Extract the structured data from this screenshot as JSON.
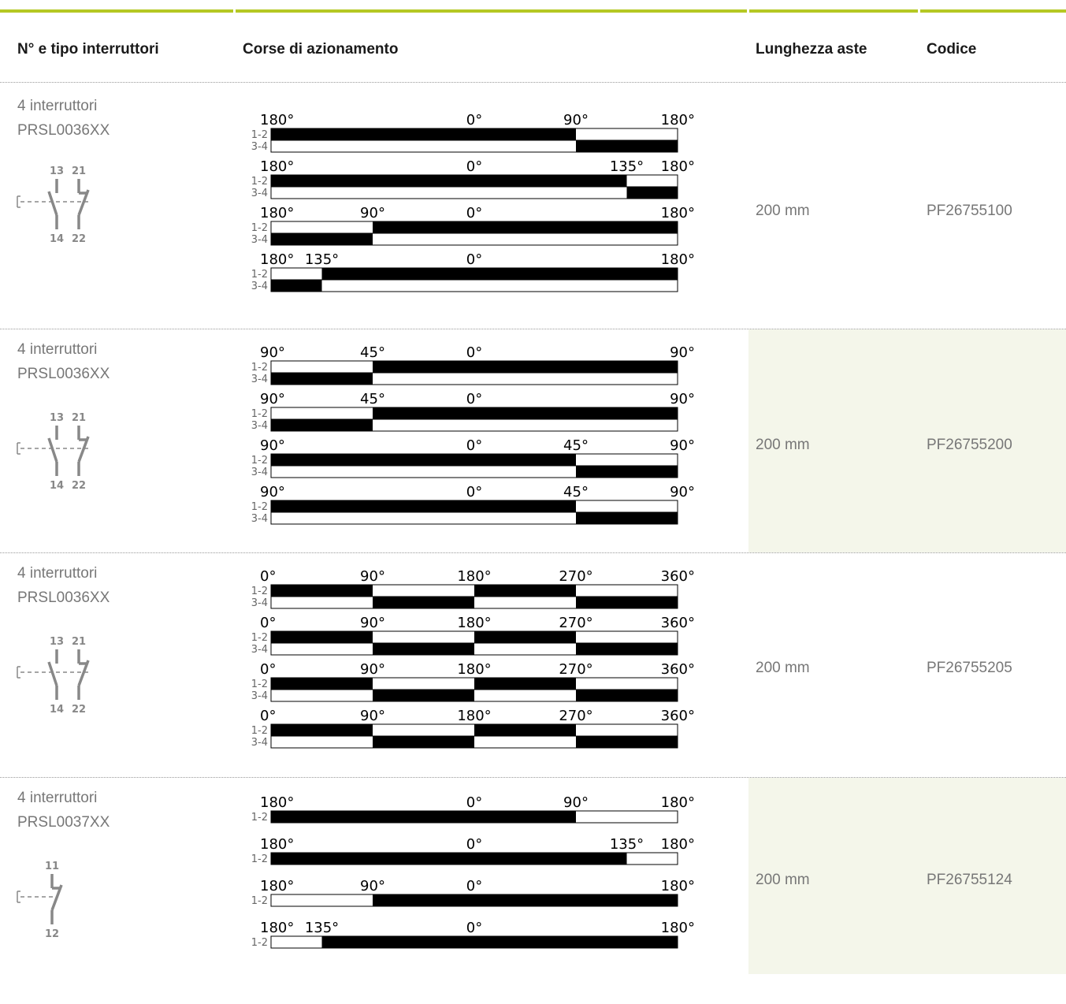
{
  "header": {
    "col1": "N° e tipo interruttori",
    "col2": "Corse di azionamento",
    "col3": "Lunghezza aste",
    "col4": "Codice"
  },
  "colors": {
    "accent": "#b5c824",
    "shade": "#f4f6ea",
    "text_gray": "#777777",
    "bar_fill": "#000000"
  },
  "rows": [
    {
      "title_line1": "4 interruttori",
      "title_line2": "PRSL0036XX",
      "switch_icon": "double-contact-switch-icon",
      "terminals": [
        "13",
        "21",
        "14",
        "22"
      ],
      "length": "200 mm",
      "code": "PF26755100",
      "shaded": false,
      "diagrams": [
        {
          "labels": [
            [
              "180°",
              0
            ],
            [
              "0°",
              0.5
            ],
            [
              "90°",
              0.75
            ],
            [
              "180°",
              1
            ]
          ],
          "tracks": [
            {
              "name": "1-2",
              "black": [
                [
                  0,
                  0.75
                ]
              ]
            },
            {
              "name": "3-4",
              "black": [
                [
                  0.75,
                  1
                ]
              ]
            }
          ]
        },
        {
          "labels": [
            [
              "180°",
              0
            ],
            [
              "0°",
              0.5
            ],
            [
              "135°",
              0.875
            ],
            [
              "180°",
              1
            ]
          ],
          "tracks": [
            {
              "name": "1-2",
              "black": [
                [
                  0,
                  0.875
                ]
              ]
            },
            {
              "name": "3-4",
              "black": [
                [
                  0.875,
                  1
                ]
              ]
            }
          ]
        },
        {
          "labels": [
            [
              "180°",
              0
            ],
            [
              "90°",
              0.25
            ],
            [
              "0°",
              0.5
            ],
            [
              "180°",
              1
            ]
          ],
          "tracks": [
            {
              "name": "1-2",
              "black": [
                [
                  0.25,
                  1
                ]
              ]
            },
            {
              "name": "3-4",
              "black": [
                [
                  0,
                  0.25
                ]
              ]
            }
          ]
        },
        {
          "labels": [
            [
              "180°",
              0
            ],
            [
              "135°",
              0.125
            ],
            [
              "0°",
              0.5
            ],
            [
              "180°",
              1
            ]
          ],
          "tracks": [
            {
              "name": "1-2",
              "black": [
                [
                  0.125,
                  1
                ]
              ]
            },
            {
              "name": "3-4",
              "black": [
                [
                  0,
                  0.125
                ]
              ]
            }
          ]
        }
      ]
    },
    {
      "title_line1": "4 interruttori",
      "title_line2": "PRSL0036XX",
      "switch_icon": "double-contact-switch-icon",
      "terminals": [
        "13",
        "21",
        "14",
        "22"
      ],
      "length": "200 mm",
      "code": "PF26755200",
      "shaded": true,
      "diagrams": [
        {
          "labels": [
            [
              "90°",
              0
            ],
            [
              "45°",
              0.25
            ],
            [
              "0°",
              0.5
            ],
            [
              "90°",
              1
            ]
          ],
          "tracks": [
            {
              "name": "1-2",
              "black": [
                [
                  0.25,
                  1
                ]
              ]
            },
            {
              "name": "3-4",
              "black": [
                [
                  0,
                  0.25
                ]
              ]
            }
          ]
        },
        {
          "labels": [
            [
              "90°",
              0
            ],
            [
              "45°",
              0.25
            ],
            [
              "0°",
              0.5
            ],
            [
              "90°",
              1
            ]
          ],
          "tracks": [
            {
              "name": "1-2",
              "black": [
                [
                  0.25,
                  1
                ]
              ]
            },
            {
              "name": "3-4",
              "black": [
                [
                  0,
                  0.25
                ]
              ]
            }
          ]
        },
        {
          "labels": [
            [
              "90°",
              0
            ],
            [
              "0°",
              0.5
            ],
            [
              "45°",
              0.75
            ],
            [
              "90°",
              1
            ]
          ],
          "tracks": [
            {
              "name": "1-2",
              "black": [
                [
                  0,
                  0.75
                ]
              ]
            },
            {
              "name": "3-4",
              "black": [
                [
                  0.75,
                  1
                ]
              ]
            }
          ]
        },
        {
          "labels": [
            [
              "90°",
              0
            ],
            [
              "0°",
              0.5
            ],
            [
              "45°",
              0.75
            ],
            [
              "90°",
              1
            ]
          ],
          "tracks": [
            {
              "name": "1-2",
              "black": [
                [
                  0,
                  0.75
                ]
              ]
            },
            {
              "name": "3-4",
              "black": [
                [
                  0.75,
                  1
                ]
              ]
            }
          ]
        }
      ]
    },
    {
      "title_line1": "4 interruttori",
      "title_line2": "PRSL0036XX",
      "switch_icon": "double-contact-switch-icon",
      "terminals": [
        "13",
        "21",
        "14",
        "22"
      ],
      "length": "200 mm",
      "code": "PF26755205",
      "shaded": false,
      "diagrams": [
        {
          "labels": [
            [
              "0°",
              0
            ],
            [
              "90°",
              0.25
            ],
            [
              "180°",
              0.5
            ],
            [
              "270°",
              0.75
            ],
            [
              "360°",
              1
            ]
          ],
          "tracks": [
            {
              "name": "1-2",
              "black": [
                [
                  0,
                  0.25
                ],
                [
                  0.5,
                  0.75
                ]
              ]
            },
            {
              "name": "3-4",
              "black": [
                [
                  0.25,
                  0.5
                ],
                [
                  0.75,
                  1
                ]
              ]
            }
          ]
        },
        {
          "labels": [
            [
              "0°",
              0
            ],
            [
              "90°",
              0.25
            ],
            [
              "180°",
              0.5
            ],
            [
              "270°",
              0.75
            ],
            [
              "360°",
              1
            ]
          ],
          "tracks": [
            {
              "name": "1-2",
              "black": [
                [
                  0,
                  0.25
                ],
                [
                  0.5,
                  0.75
                ]
              ]
            },
            {
              "name": "3-4",
              "black": [
                [
                  0.25,
                  0.5
                ],
                [
                  0.75,
                  1
                ]
              ]
            }
          ]
        },
        {
          "labels": [
            [
              "0°",
              0
            ],
            [
              "90°",
              0.25
            ],
            [
              "180°",
              0.5
            ],
            [
              "270°",
              0.75
            ],
            [
              "360°",
              1
            ]
          ],
          "tracks": [
            {
              "name": "1-2",
              "black": [
                [
                  0,
                  0.25
                ],
                [
                  0.5,
                  0.75
                ]
              ]
            },
            {
              "name": "3-4",
              "black": [
                [
                  0.25,
                  0.5
                ],
                [
                  0.75,
                  1
                ]
              ]
            }
          ]
        },
        {
          "labels": [
            [
              "0°",
              0
            ],
            [
              "90°",
              0.25
            ],
            [
              "180°",
              0.5
            ],
            [
              "270°",
              0.75
            ],
            [
              "360°",
              1
            ]
          ],
          "tracks": [
            {
              "name": "1-2",
              "black": [
                [
                  0,
                  0.25
                ],
                [
                  0.5,
                  0.75
                ]
              ]
            },
            {
              "name": "3-4",
              "black": [
                [
                  0.25,
                  0.5
                ],
                [
                  0.75,
                  1
                ]
              ]
            }
          ]
        }
      ]
    },
    {
      "title_line1": "4 interruttori",
      "title_line2": "PRSL0037XX",
      "switch_icon": "single-contact-switch-icon",
      "terminals": [
        "11",
        "12"
      ],
      "length": "200 mm",
      "code": "PF26755124",
      "shaded": true,
      "diagrams": [
        {
          "labels": [
            [
              "180°",
              0
            ],
            [
              "0°",
              0.5
            ],
            [
              "90°",
              0.75
            ],
            [
              "180°",
              1
            ]
          ],
          "tracks": [
            {
              "name": "1-2",
              "black": [
                [
                  0,
                  0.75
                ]
              ]
            }
          ]
        },
        {
          "labels": [
            [
              "180°",
              0
            ],
            [
              "0°",
              0.5
            ],
            [
              "135°",
              0.875
            ],
            [
              "180°",
              1
            ]
          ],
          "tracks": [
            {
              "name": "1-2",
              "black": [
                [
                  0,
                  0.875
                ]
              ]
            }
          ]
        },
        {
          "labels": [
            [
              "180°",
              0
            ],
            [
              "90°",
              0.25
            ],
            [
              "0°",
              0.5
            ],
            [
              "180°",
              1
            ]
          ],
          "tracks": [
            {
              "name": "1-2",
              "black": [
                [
                  0.25,
                  1
                ]
              ]
            }
          ]
        },
        {
          "labels": [
            [
              "180°",
              0
            ],
            [
              "135°",
              0.125
            ],
            [
              "0°",
              0.5
            ],
            [
              "180°",
              1
            ]
          ],
          "tracks": [
            {
              "name": "1-2",
              "black": [
                [
                  0.125,
                  1
                ]
              ]
            }
          ]
        }
      ]
    }
  ]
}
